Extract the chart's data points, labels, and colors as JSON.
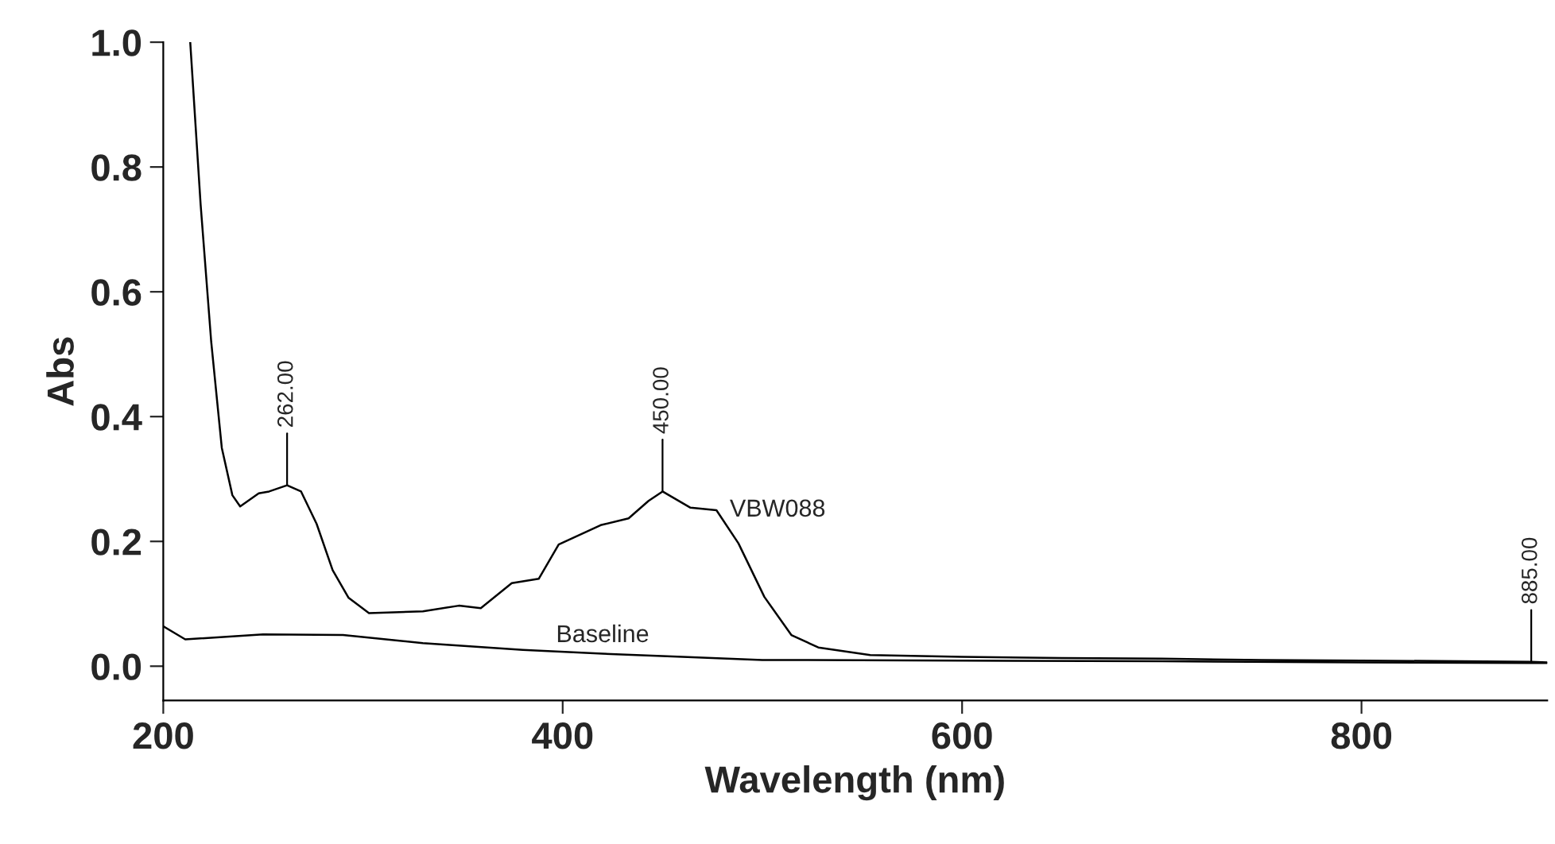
{
  "chart_data": {
    "type": "line",
    "xlabel": "Wavelength (nm)",
    "ylabel": "Abs",
    "series": [
      {
        "name": "VBW088",
        "color": "#000000",
        "x": [
          213.5,
          218.7,
          224,
          229.3,
          234.6,
          238.5,
          247.8,
          253,
          262,
          269,
          276.8,
          284.8,
          292.7,
          303,
          330,
          348,
          359,
          374.5,
          388,
          398,
          419,
          433,
          443,
          450,
          464,
          477,
          488,
          501,
          514.5,
          528,
          554,
          600,
          650,
          700,
          750,
          800,
          850,
          885,
          893
        ],
        "values": [
          1.0,
          0.74,
          0.52,
          0.35,
          0.274,
          0.256,
          0.277,
          0.28,
          0.29,
          0.28,
          0.228,
          0.154,
          0.11,
          0.085,
          0.088,
          0.097,
          0.093,
          0.133,
          0.14,
          0.195,
          0.226,
          0.237,
          0.265,
          0.28,
          0.254,
          0.25,
          0.197,
          0.111,
          0.05,
          0.03,
          0.018,
          0.015,
          0.013,
          0.012,
          0.01,
          0.009,
          0.008,
          0.007,
          0.006
        ]
      },
      {
        "name": "Baseline",
        "color": "#000000",
        "x": [
          200,
          211,
          250,
          290,
          330,
          380,
          420,
          460,
          500,
          600,
          700,
          800,
          885,
          893
        ],
        "values": [
          0.064,
          0.043,
          0.051,
          0.05,
          0.037,
          0.026,
          0.02,
          0.015,
          0.01,
          0.009,
          0.008,
          0.006,
          0.005,
          0.005
        ]
      }
    ],
    "annotations": [
      {
        "text": "262.00",
        "x": 262,
        "y": 0.29
      },
      {
        "text": "450.00",
        "x": 450,
        "y": 0.28
      },
      {
        "text": "885.00",
        "x": 885,
        "y": 0.007
      }
    ],
    "xlim": [
      200,
      893
    ],
    "ylim": [
      -0.055,
      1.0
    ],
    "xticks": [
      200,
      400,
      600,
      800
    ],
    "yticks": [
      {
        "value": 0,
        "label": "0.0"
      },
      {
        "value": 0.2,
        "label": "0.2"
      },
      {
        "value": 0.4,
        "label": "0.4"
      },
      {
        "value": 0.6,
        "label": "0.6"
      },
      {
        "value": 0.8,
        "label": "0.8"
      },
      {
        "value": 1.0,
        "label": "1.0"
      }
    ],
    "grid": false,
    "legend": false
  }
}
